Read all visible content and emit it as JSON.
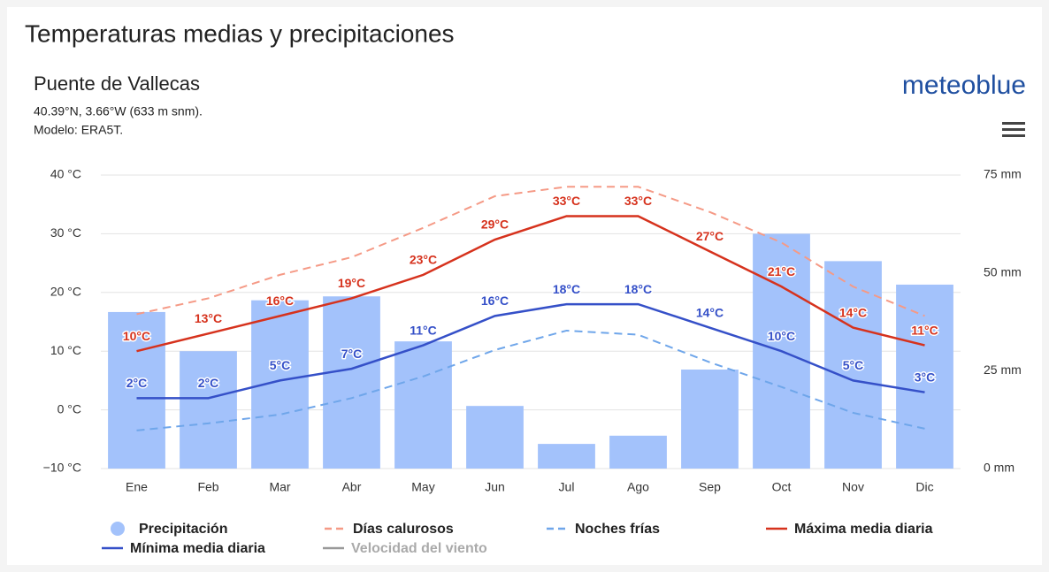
{
  "chart_data": {
    "type": "combo",
    "title": "Temperaturas medias y precipitaciones",
    "location": "Puente de Vallecas",
    "coordinates": "40.39°N, 3.66°W (633 m snm).",
    "model": "Modelo: ERA5T.",
    "brand": "meteoblue",
    "categories": [
      "Ene",
      "Feb",
      "Mar",
      "Abr",
      "May",
      "Jun",
      "Jul",
      "Ago",
      "Sep",
      "Oct",
      "Nov",
      "Dic"
    ],
    "ylim": [
      -10,
      40
    ],
    "yticks": [
      {
        "value": -10,
        "label": "−10 °C"
      },
      {
        "value": 0,
        "label": "0 °C"
      },
      {
        "value": 10,
        "label": "10 °C"
      },
      {
        "value": 20,
        "label": "20 °C"
      },
      {
        "value": 30,
        "label": "30 °C"
      },
      {
        "value": 40,
        "label": "40 °C"
      }
    ],
    "y2lim": [
      0,
      75
    ],
    "y2ticks": [
      {
        "value": 0,
        "label": "0 mm"
      },
      {
        "value": 25,
        "label": "25 mm"
      },
      {
        "value": 50,
        "label": "50 mm"
      },
      {
        "value": 75,
        "label": "75 mm"
      }
    ],
    "grid": true,
    "series": [
      {
        "name": "Precipitación",
        "type": "bar",
        "axis": "y2",
        "color": "#a3c2fb",
        "values": [
          40,
          30,
          43,
          44,
          32.5,
          16,
          6.3,
          8.4,
          25.3,
          60,
          53,
          47
        ]
      },
      {
        "name": "Días calurosos",
        "type": "line",
        "dashed": true,
        "color": "#f59a86",
        "values": [
          16.3,
          19,
          23,
          26,
          31,
          36.4,
          38,
          38,
          33.7,
          28.5,
          21,
          16
        ]
      },
      {
        "name": "Noches frías",
        "type": "line",
        "dashed": true,
        "color": "#6fa6ea",
        "values": [
          -3.5,
          -2.3,
          -0.8,
          2,
          5.7,
          10.2,
          13.5,
          12.8,
          8.1,
          3.9,
          -0.5,
          -3.2
        ]
      },
      {
        "name": "Máxima media diaria",
        "type": "line",
        "dashed": false,
        "color": "#d6321d",
        "values": [
          10,
          13,
          16,
          19,
          23,
          29,
          33,
          33,
          27,
          21,
          14,
          11
        ],
        "value_labels": [
          "10°C",
          "13°C",
          "16°C",
          "19°C",
          "23°C",
          "29°C",
          "33°C",
          "33°C",
          "27°C",
          "21°C",
          "14°C",
          "11°C"
        ]
      },
      {
        "name": "Mínima media diaria",
        "type": "line",
        "dashed": false,
        "color": "#3550c8",
        "values": [
          2,
          2,
          5,
          7,
          11,
          16,
          18,
          18,
          14,
          10,
          5,
          3
        ],
        "value_labels": [
          "2°C",
          "2°C",
          "5°C",
          "7°C",
          "11°C",
          "16°C",
          "18°C",
          "18°C",
          "14°C",
          "10°C",
          "5°C",
          "3°C"
        ]
      },
      {
        "name": "Velocidad del viento",
        "type": "legend",
        "color": "#999999",
        "disabled": true
      }
    ]
  }
}
